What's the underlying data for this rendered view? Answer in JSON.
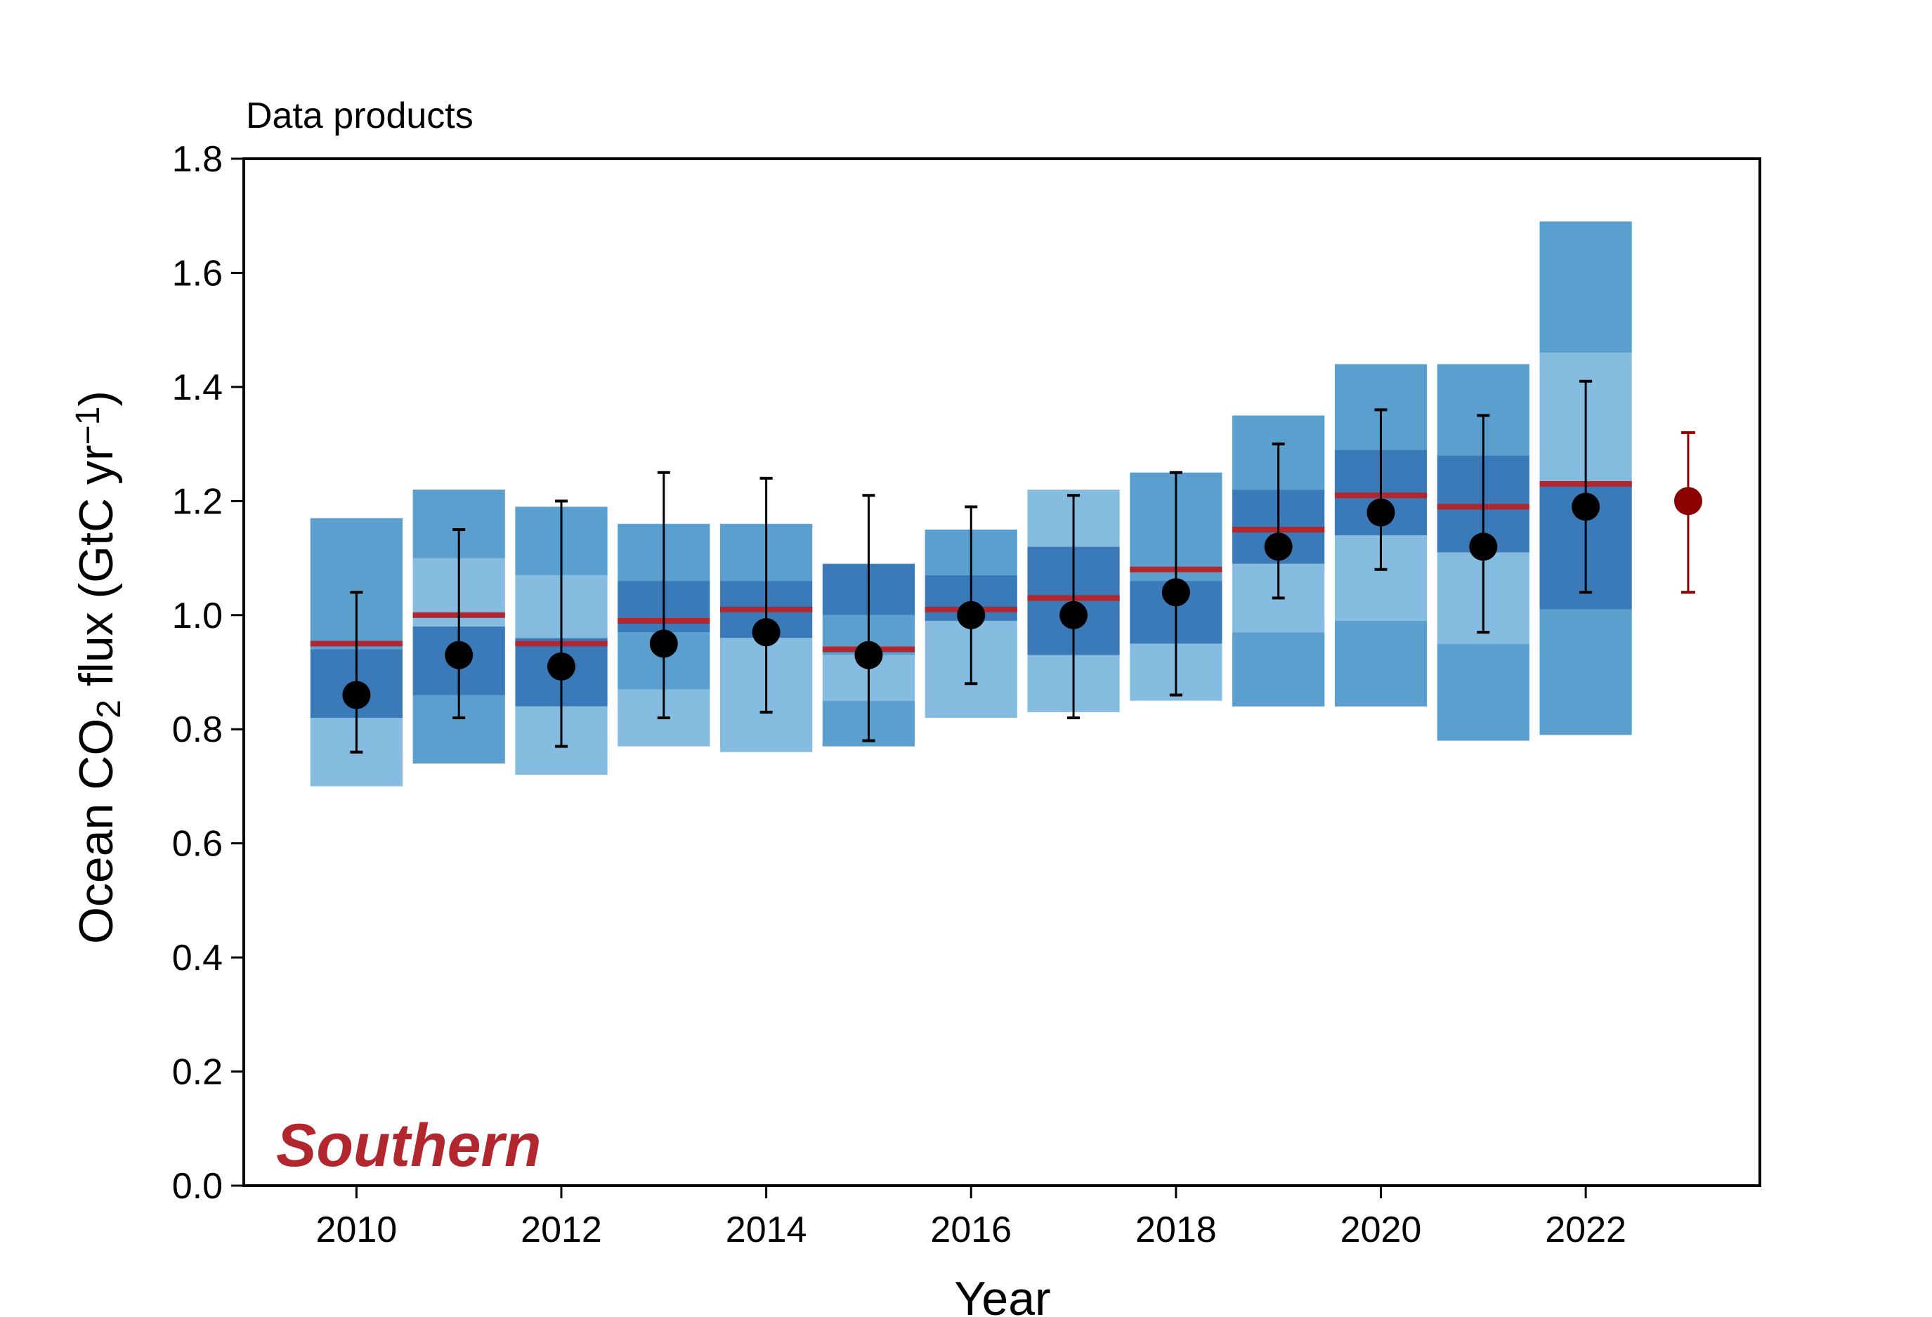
{
  "chart_data": {
    "type": "bar",
    "title": "Data products",
    "xlabel": "Year",
    "ylabel_parts": {
      "pre": "Ocean CO",
      "sub": "2",
      "mid": " flux (GtC yr",
      "sup": "−1",
      "post": ")"
    },
    "annotation": "Southern",
    "xlim": [
      2008.9,
      2023.7
    ],
    "ylim": [
      0.0,
      1.8
    ],
    "xticks": [
      "2010",
      "2012",
      "2014",
      "2016",
      "2018",
      "2020",
      "2022"
    ],
    "yticks": [
      "0.0",
      "0.2",
      "0.4",
      "0.6",
      "0.8",
      "1.0",
      "1.2",
      "1.4",
      "1.6",
      "1.8"
    ],
    "grid": false,
    "colors": {
      "dark_blue": "#3a7ab8",
      "mid_blue": "#5a9fcd",
      "light_blue": "#85bce0",
      "median_line": "#b2262d",
      "ensemble_point": "#000000",
      "estimate_point": "#8b0000",
      "annotation": "#b2262d"
    },
    "stacked_segments_description": "Each year shows a stacked column of colored segments (bottom to top) spanning the spread of data products.",
    "years": [
      {
        "year": 2010,
        "segments": [
          [
            0.7,
            0.82,
            "light"
          ],
          [
            0.82,
            0.94,
            "dark"
          ],
          [
            0.94,
            1.17,
            "mid"
          ]
        ],
        "median": 0.95,
        "mean": 0.86,
        "err": [
          0.76,
          1.04
        ]
      },
      {
        "year": 2011,
        "segments": [
          [
            0.74,
            0.86,
            "mid"
          ],
          [
            0.86,
            0.98,
            "dark"
          ],
          [
            0.98,
            1.1,
            "light"
          ],
          [
            1.1,
            1.22,
            "mid"
          ]
        ],
        "median": 1.0,
        "mean": 0.93,
        "err": [
          0.82,
          1.15
        ]
      },
      {
        "year": 2012,
        "segments": [
          [
            0.72,
            0.84,
            "light"
          ],
          [
            0.84,
            0.96,
            "dark"
          ],
          [
            0.96,
            1.07,
            "light"
          ],
          [
            1.07,
            1.19,
            "mid"
          ]
        ],
        "median": 0.95,
        "mean": 0.91,
        "err": [
          0.77,
          1.2
        ]
      },
      {
        "year": 2013,
        "segments": [
          [
            0.77,
            0.87,
            "light"
          ],
          [
            0.87,
            0.97,
            "mid"
          ],
          [
            0.97,
            1.06,
            "dark"
          ],
          [
            1.06,
            1.16,
            "mid"
          ]
        ],
        "median": 0.99,
        "mean": 0.95,
        "err": [
          0.82,
          1.25
        ]
      },
      {
        "year": 2014,
        "segments": [
          [
            0.76,
            0.96,
            "light"
          ],
          [
            0.96,
            1.06,
            "dark"
          ],
          [
            1.06,
            1.16,
            "mid"
          ]
        ],
        "median": 1.01,
        "mean": 0.97,
        "err": [
          0.83,
          1.24
        ]
      },
      {
        "year": 2015,
        "segments": [
          [
            0.77,
            0.85,
            "mid"
          ],
          [
            0.85,
            0.93,
            "light"
          ],
          [
            0.93,
            1.0,
            "mid"
          ],
          [
            1.0,
            1.09,
            "dark"
          ]
        ],
        "median": 0.94,
        "mean": 0.93,
        "err": [
          0.78,
          1.21
        ]
      },
      {
        "year": 2016,
        "segments": [
          [
            0.82,
            0.99,
            "light"
          ],
          [
            0.99,
            1.07,
            "dark"
          ],
          [
            1.07,
            1.15,
            "mid"
          ]
        ],
        "median": 1.01,
        "mean": 1.0,
        "err": [
          0.88,
          1.19
        ]
      },
      {
        "year": 2017,
        "segments": [
          [
            0.83,
            0.93,
            "light"
          ],
          [
            0.93,
            1.12,
            "dark"
          ],
          [
            1.12,
            1.22,
            "light"
          ]
        ],
        "median": 1.03,
        "mean": 1.0,
        "err": [
          0.82,
          1.21
        ]
      },
      {
        "year": 2018,
        "segments": [
          [
            0.85,
            0.95,
            "light"
          ],
          [
            0.95,
            1.06,
            "dark"
          ],
          [
            1.06,
            1.25,
            "mid"
          ]
        ],
        "median": 1.08,
        "mean": 1.04,
        "err": [
          0.86,
          1.25
        ]
      },
      {
        "year": 2019,
        "segments": [
          [
            0.84,
            0.97,
            "mid"
          ],
          [
            0.97,
            1.09,
            "light"
          ],
          [
            1.09,
            1.22,
            "dark"
          ],
          [
            1.22,
            1.35,
            "mid"
          ]
        ],
        "median": 1.15,
        "mean": 1.12,
        "err": [
          1.03,
          1.3
        ]
      },
      {
        "year": 2020,
        "segments": [
          [
            0.84,
            0.99,
            "mid"
          ],
          [
            0.99,
            1.14,
            "light"
          ],
          [
            1.14,
            1.29,
            "dark"
          ],
          [
            1.29,
            1.44,
            "mid"
          ]
        ],
        "median": 1.21,
        "mean": 1.18,
        "err": [
          1.08,
          1.36
        ]
      },
      {
        "year": 2021,
        "segments": [
          [
            0.78,
            0.95,
            "mid"
          ],
          [
            0.95,
            1.11,
            "light"
          ],
          [
            1.11,
            1.28,
            "dark"
          ],
          [
            1.28,
            1.44,
            "mid"
          ]
        ],
        "median": 1.19,
        "mean": 1.12,
        "err": [
          0.97,
          1.35
        ]
      },
      {
        "year": 2022,
        "segments": [
          [
            0.79,
            1.01,
            "mid"
          ],
          [
            1.01,
            1.23,
            "dark"
          ],
          [
            1.23,
            1.46,
            "light"
          ],
          [
            1.46,
            1.69,
            "mid"
          ]
        ],
        "median": 1.23,
        "mean": 1.19,
        "err": [
          1.04,
          1.41
        ]
      }
    ],
    "estimate_point": {
      "year": 2023,
      "value": 1.2,
      "err": [
        1.04,
        1.32
      ]
    }
  }
}
